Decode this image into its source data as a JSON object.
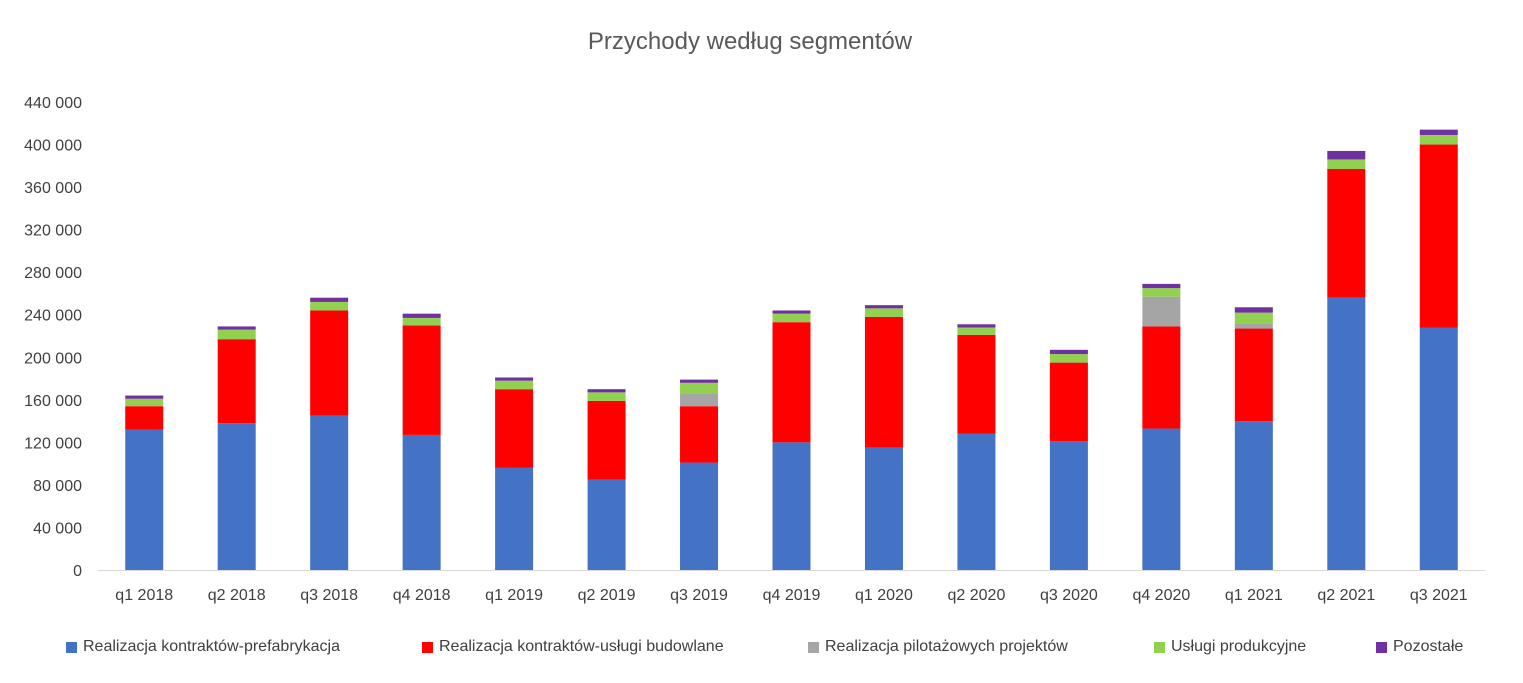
{
  "chart_data": {
    "type": "bar",
    "stacked": true,
    "title": "Przychody według segmentów",
    "xlabel": "",
    "ylabel": "",
    "ylim": [
      0,
      440000
    ],
    "yticks": [
      0,
      40000,
      80000,
      120000,
      160000,
      200000,
      240000,
      280000,
      320000,
      360000,
      400000,
      440000
    ],
    "ytick_labels": [
      "0",
      "40 000",
      "80 000",
      "120 000",
      "160 000",
      "200 000",
      "240 000",
      "280 000",
      "320 000",
      "360 000",
      "400 000",
      "440 000"
    ],
    "categories": [
      "q1 2018",
      "q2 2018",
      "q3 2018",
      "q4 2018",
      "q1 2019",
      "q2 2019",
      "q3 2019",
      "q4 2019",
      "q1 2020",
      "q2 2020",
      "q3 2020",
      "q4 2020",
      "q1 2021",
      "q2 2021",
      "q3 2021"
    ],
    "series": [
      {
        "name": "Realizacja kontraktów-prefabrykacja",
        "color": "#4472C4",
        "values": [
          132000,
          138000,
          145000,
          127000,
          96000,
          85000,
          101000,
          120000,
          115000,
          128000,
          121000,
          133000,
          140000,
          256000,
          228000
        ]
      },
      {
        "name": "Realizacja kontraktów-usługi budowlane",
        "color": "#FF0000",
        "values": [
          22000,
          79000,
          99000,
          103000,
          74000,
          74000,
          53000,
          113000,
          123000,
          93000,
          74000,
          96000,
          87000,
          121000,
          172000
        ]
      },
      {
        "name": "Realizacja pilotażowych projektów",
        "color": "#A5A5A5",
        "values": [
          0,
          0,
          0,
          0,
          0,
          0,
          12000,
          0,
          0,
          0,
          0,
          28000,
          5000,
          0,
          0
        ]
      },
      {
        "name": "Usługi produkcyjne",
        "color": "#92D050",
        "values": [
          7000,
          9000,
          8000,
          7000,
          8000,
          8000,
          10000,
          8000,
          8000,
          7000,
          8000,
          8000,
          10000,
          9000,
          9000
        ]
      },
      {
        "name": "Pozostałe",
        "color": "#7030A0",
        "values": [
          3000,
          3000,
          4000,
          4000,
          3000,
          3000,
          3000,
          3000,
          3000,
          3000,
          4000,
          4000,
          5000,
          8000,
          5000
        ]
      }
    ],
    "grid": false,
    "legend": "bottom"
  }
}
